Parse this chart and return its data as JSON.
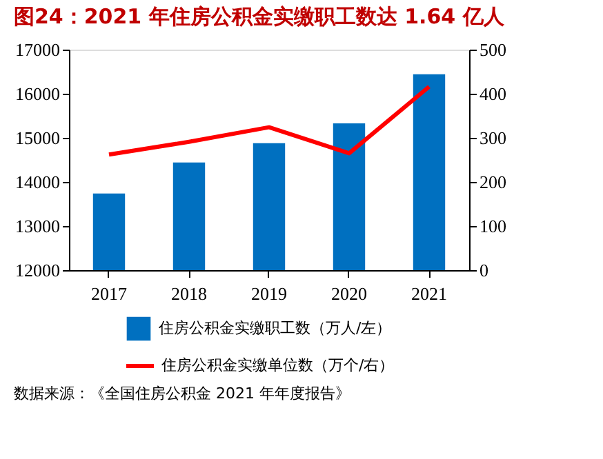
{
  "chart_data": {
    "type": "bar",
    "title": "图24：2021 年住房公积金实缴职工数达 1.64 亿人",
    "categories": [
      "2017",
      "2018",
      "2019",
      "2020",
      "2021"
    ],
    "series": [
      {
        "name": "住房公积金实缴职工数（万人/左）",
        "color": "#0070c0",
        "values": [
          13740,
          14440,
          14880,
          15330,
          16440
        ]
      },
      {
        "name": "住房公积金实缴单位数（万个/右）",
        "type": "line",
        "axis": "y2",
        "color": "#ff0000",
        "values": [
          262,
          291,
          324,
          265,
          416
        ]
      }
    ],
    "ylim": [
      12000,
      17000
    ],
    "yticks": [
      12000,
      13000,
      14000,
      15000,
      16000,
      17000
    ],
    "y2lim": [
      0,
      500
    ],
    "y2ticks": [
      0,
      100,
      200,
      300,
      400,
      500
    ],
    "grid": false,
    "legend": "bottom",
    "marker": "none",
    "line_style": "solid",
    "annotations": [
      "数据来源：《全国住房公积金 2021 年年度报告》"
    ]
  }
}
